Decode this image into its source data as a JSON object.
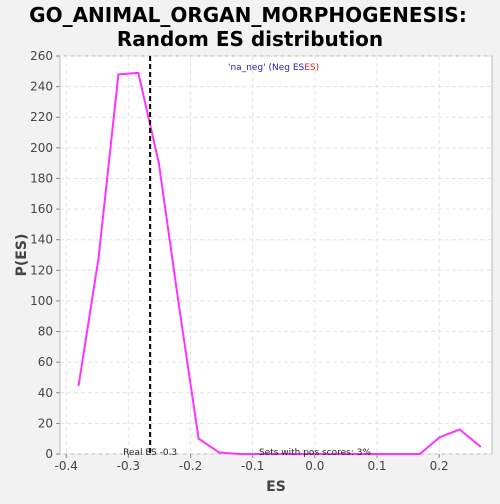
{
  "chart_data": {
    "type": "line",
    "title": "GO_ANIMAL_ORGAN_MORPHOGENESIS:",
    "subtitle": "Random ES distribution",
    "xlabel": "ES",
    "ylabel": "P(ES)",
    "xlim": [
      -0.41,
      0.285
    ],
    "ylim": [
      0,
      260
    ],
    "xticks": [
      -0.4,
      -0.3,
      -0.2,
      -0.1,
      0.0,
      0.1,
      0.2
    ],
    "xtick_labels": [
      "-0.4",
      "-0.3",
      "-0.2",
      "-0.1",
      "0.0",
      "0.1",
      "0.2"
    ],
    "yticks": [
      0,
      20,
      40,
      60,
      80,
      100,
      120,
      140,
      160,
      180,
      200,
      220,
      240,
      260
    ],
    "ytick_labels": [
      "0",
      "20",
      "40",
      "60",
      "80",
      "100",
      "120",
      "140",
      "160",
      "180",
      "200",
      "220",
      "240",
      "260"
    ],
    "grid": true,
    "series": [
      {
        "name": "'na_neg' (Neg ES)",
        "color": "#ff33ff",
        "x": [
          -0.38,
          -0.348,
          -0.316,
          -0.284,
          -0.251,
          -0.219,
          -0.187,
          -0.154,
          -0.122,
          -0.09,
          -0.057,
          -0.025,
          0.007,
          0.04,
          0.072,
          0.104,
          0.136,
          0.169,
          0.201,
          0.233,
          0.266
        ],
        "y": [
          45,
          128,
          248,
          249,
          190,
          98,
          10,
          1,
          0,
          0,
          0,
          0,
          0,
          0,
          0,
          0,
          0,
          0,
          11,
          16,
          5
        ]
      }
    ],
    "legend": {
      "entry_prefix": "'na_neg' (Neg ES",
      "entry_suffix": "ES)",
      "placement": "top-center"
    },
    "real_es": {
      "value": -0.265,
      "label": "Real ES -0.3",
      "line_color": "#000000"
    },
    "annotation": "Sets with pos scores: 3%"
  }
}
